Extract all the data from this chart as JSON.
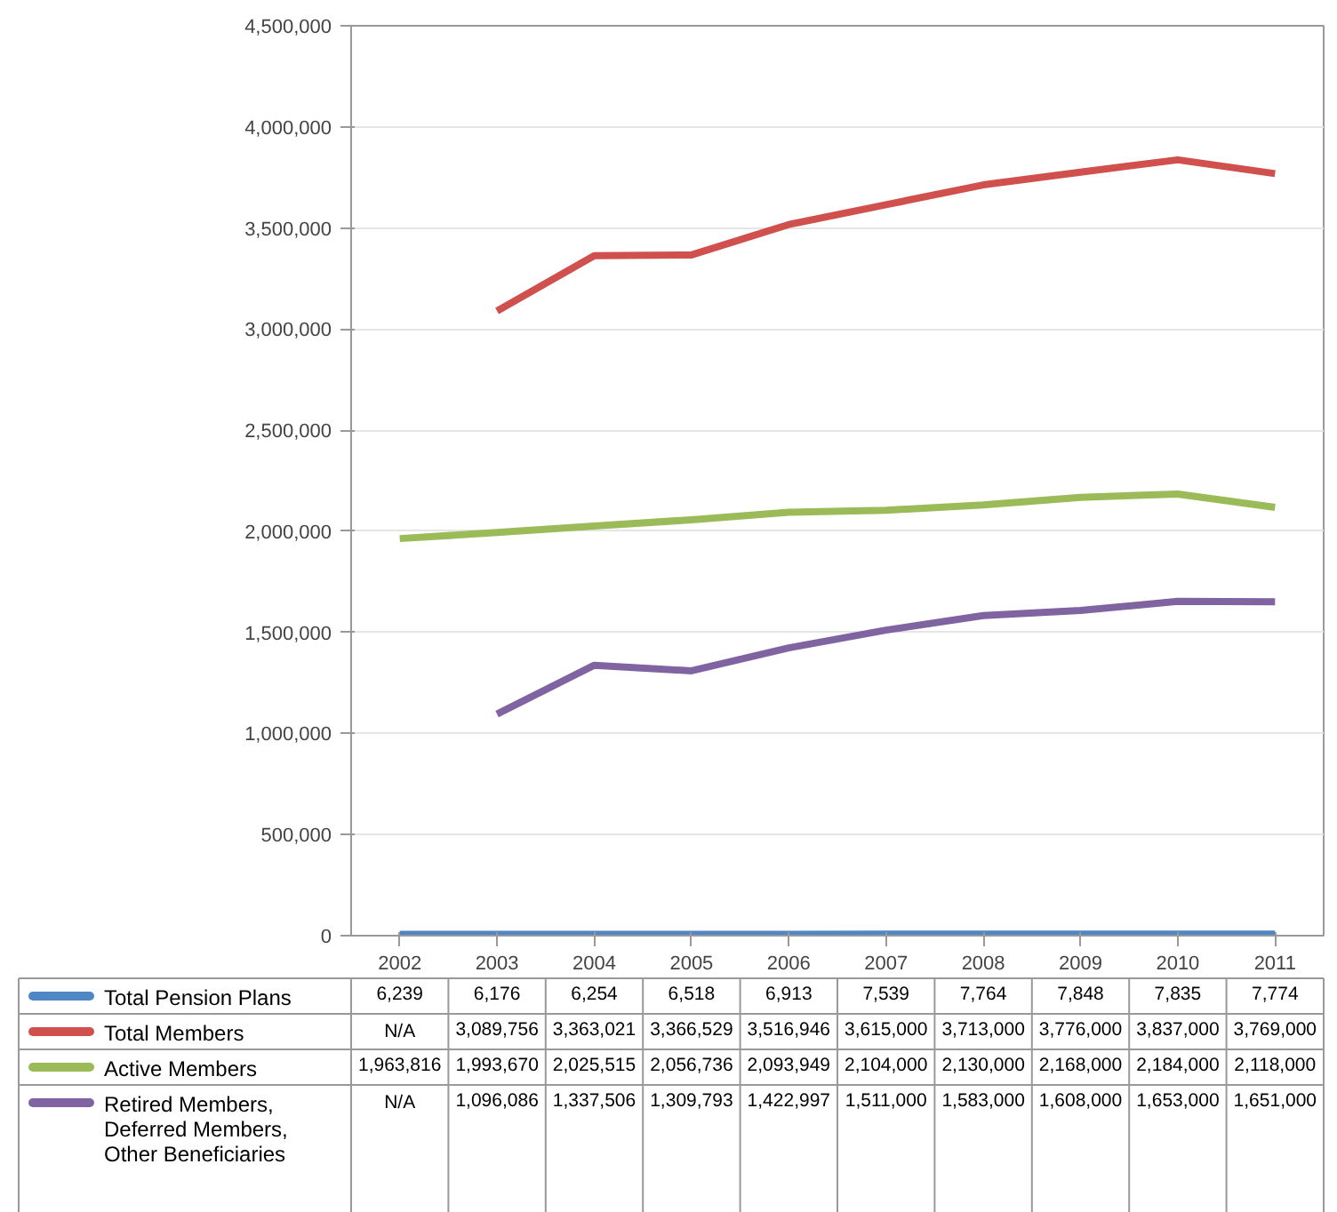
{
  "chart_data": {
    "type": "line",
    "categories": [
      "2002",
      "2003",
      "2004",
      "2005",
      "2006",
      "2007",
      "2008",
      "2009",
      "2010",
      "2011"
    ],
    "ylim": [
      0,
      4500000
    ],
    "yticks": [
      0,
      {
        "value": 500000,
        "label": "500,000"
      },
      {
        "value": 1000000,
        "label": "1,000,000"
      },
      {
        "value": 1500000,
        "label": "1,500,000"
      },
      {
        "value": 2000000,
        "label": "2,000,000"
      },
      {
        "value": 2500000,
        "label": "2,500,000"
      },
      {
        "value": 3000000,
        "label": "3,000,000"
      },
      {
        "value": 3500000,
        "label": "3,500,000"
      },
      {
        "value": 4000000,
        "label": "4,000,000"
      },
      {
        "value": 4500000,
        "label": "4,500,000"
      }
    ],
    "grid": "y",
    "legend": "bottom",
    "line_style": "solid",
    "marker": "none",
    "series": [
      {
        "name": "Total Pension Plans",
        "color": "#4f86c6",
        "values": [
          6239,
          6176,
          6254,
          6518,
          6913,
          7539,
          7764,
          7848,
          7835,
          7774
        ],
        "value_labels": [
          "6,239",
          "6,176",
          "6,254",
          "6,518",
          "6,913",
          "7,539",
          "7,764",
          "7,848",
          "7,835",
          "7,774"
        ]
      },
      {
        "name": "Total Members",
        "color": "#d0504d",
        "values": [
          null,
          3089756,
          3363021,
          3366529,
          3516946,
          3615000,
          3713000,
          3776000,
          3837000,
          3769000
        ],
        "value_labels": [
          "N/A",
          "3,089,756",
          "3,363,021",
          "3,366,529",
          "3,516,946",
          "3,615,000",
          "3,713,000",
          "3,776,000",
          "3,837,000",
          "3,769,000"
        ]
      },
      {
        "name": "Active Members",
        "color": "#9bbb59",
        "values": [
          1963816,
          1993670,
          2025515,
          2056736,
          2093949,
          2104000,
          2130000,
          2168000,
          2184000,
          2118000
        ],
        "value_labels": [
          "1,963,816",
          "1,993,670",
          "2,025,515",
          "2,056,736",
          "2,093,949",
          "2,104,000",
          "2,130,000",
          "2,168,000",
          "2,184,000",
          "2,118,000"
        ]
      },
      {
        "name": "Retired Members, Deferred Members, Other Beneficiaries",
        "color": "#8064a2",
        "values": [
          null,
          1096086,
          1337506,
          1309793,
          1422997,
          1511000,
          1583000,
          1608000,
          1653000,
          1651000
        ],
        "value_labels": [
          "N/A",
          "1,096,086",
          "1,337,506",
          "1,309,793",
          "1,422,997",
          "1,511,000",
          "1,583,000",
          "1,608,000",
          "1,653,000",
          "1,651,000"
        ]
      }
    ]
  }
}
